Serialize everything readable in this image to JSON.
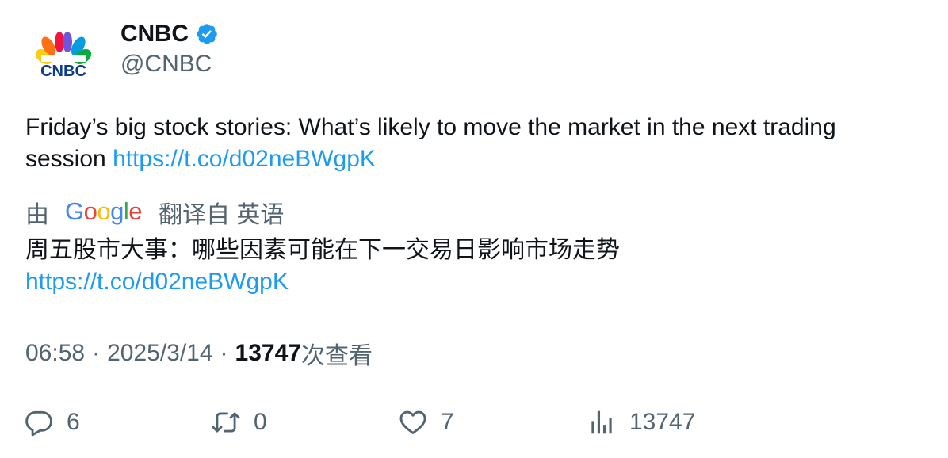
{
  "author": {
    "display_name": "CNBC",
    "handle": "@CNBC",
    "logo_text": "CNBC"
  },
  "tweet": {
    "text": "Friday’s big stock stories: What’s likely to move the market in the next trading session ",
    "link": "https://t.co/d02neBWgpK"
  },
  "translation": {
    "prefix": "由",
    "provider": "Google",
    "suffix": "翻译自 英语",
    "text": "周五股市大事：哪些因素可能在下一交易日影响市场走势",
    "link": "https://t.co/d02neBWgpK"
  },
  "meta": {
    "time": "06:58",
    "separator": "·",
    "date": "2025/3/14",
    "views": "13747",
    "views_label": "次查看"
  },
  "actions": {
    "replies": "6",
    "retweets": "0",
    "likes": "7",
    "views": "13747"
  },
  "colors": {
    "link": "#1d9bf0",
    "secondary": "#536471",
    "primary": "#0f1419",
    "verified": "#1d9bf0"
  }
}
